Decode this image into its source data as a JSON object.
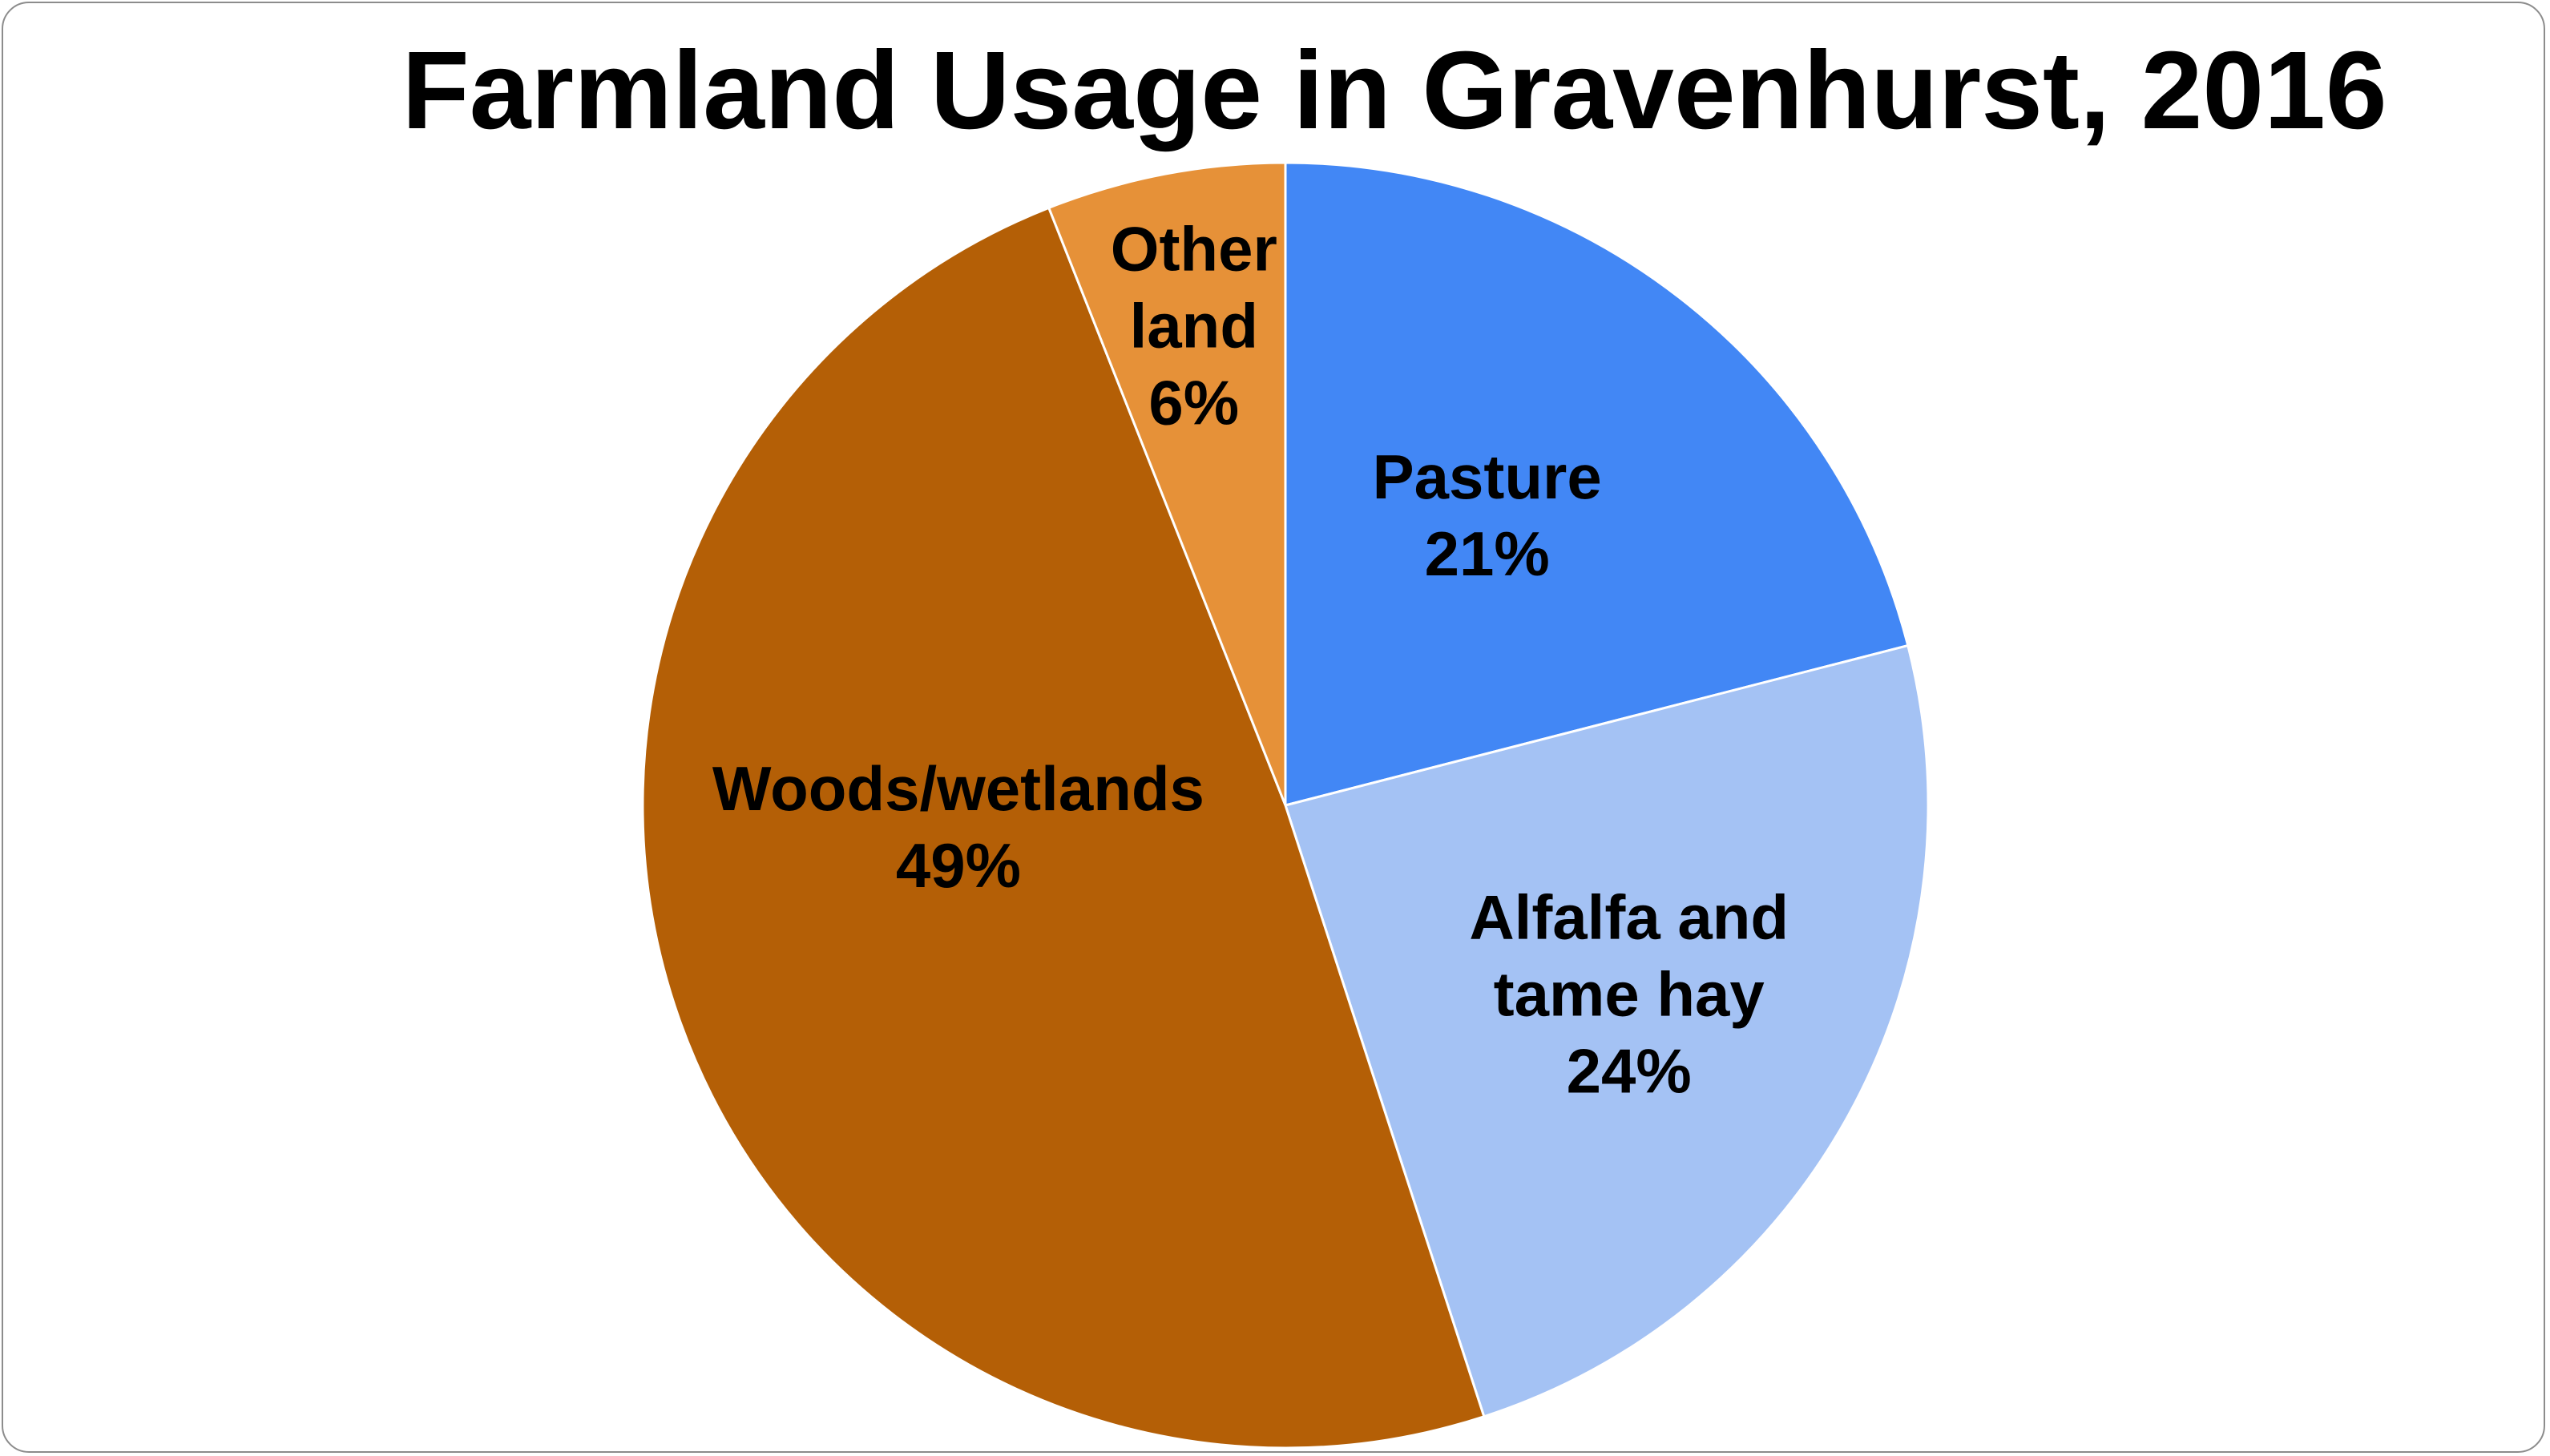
{
  "chart_data": {
    "type": "pie",
    "title": "Farmland Usage in Gravenhurst, 2016",
    "slices": [
      {
        "label": [
          "Pasture"
        ],
        "percent_label": "21%",
        "value": 21,
        "color": "#4287f5"
      },
      {
        "label": [
          "Alfalfa and",
          "tame hay"
        ],
        "percent_label": "24%",
        "value": 24,
        "color": "#a4c2f4"
      },
      {
        "label": [
          "Woods/wetlands"
        ],
        "percent_label": "49%",
        "value": 49,
        "color": "#b45f06"
      },
      {
        "label": [
          "Other",
          "land"
        ],
        "percent_label": "6%",
        "value": 6,
        "color": "#e69138"
      }
    ],
    "start_angle_deg": 0,
    "direction": "clockwise",
    "legend": "none"
  }
}
